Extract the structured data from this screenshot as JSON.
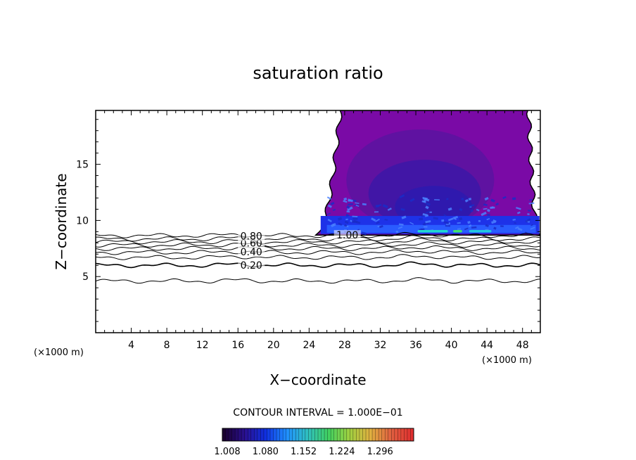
{
  "chart_data": {
    "type": "contour",
    "title": "saturation ratio",
    "xlabel": "X−coordinate",
    "ylabel": "Z−coordinate",
    "x_unit_left": "(×1000 m)",
    "x_unit_right": "(×1000 m)",
    "xlim": [
      0,
      50
    ],
    "ylim": [
      0,
      19.8
    ],
    "x_ticks": [
      4,
      8,
      12,
      16,
      20,
      24,
      28,
      32,
      36,
      40,
      44,
      48
    ],
    "y_ticks": [
      5,
      10,
      15
    ],
    "contour_interval_text": "CONTOUR INTERVAL = 1.000E−01",
    "contour_lines": [
      {
        "level": 0.1,
        "z": 4.6
      },
      {
        "level": 0.2,
        "z": 6.0
      },
      {
        "level": 0.3,
        "z": 6.7
      },
      {
        "level": 0.4,
        "z": 7.15
      },
      {
        "level": 0.5,
        "z": 7.5
      },
      {
        "level": 0.6,
        "z": 7.8
      },
      {
        "level": 0.7,
        "z": 8.1
      },
      {
        "level": 0.8,
        "z": 8.35
      },
      {
        "level": 0.9,
        "z": 8.65
      }
    ],
    "contour_labels": [
      {
        "text": "0.20",
        "x": 17.5,
        "z": 6.0
      },
      {
        "text": "0.40",
        "x": 17.5,
        "z": 7.2
      },
      {
        "text": "0.60",
        "x": 17.5,
        "z": 8.0
      },
      {
        "text": "0.80",
        "x": 17.5,
        "z": 8.6
      },
      {
        "text": "1.00",
        "x": 28.3,
        "z": 8.7
      }
    ],
    "supersaturated_region": {
      "x_range": [
        25,
        50
      ],
      "z_range": [
        8.7,
        19.8
      ],
      "shading": "saturation ratio above 1.0"
    },
    "colorbar": {
      "ticks": [
        "1.008",
        "1.080",
        "1.152",
        "1.224",
        "1.296"
      ],
      "colors": [
        "#1a0030",
        "#2a1090",
        "#1030e0",
        "#2090ff",
        "#30c0c0",
        "#40d060",
        "#a0d040",
        "#e0b040",
        "#e06040",
        "#e03030"
      ]
    }
  }
}
